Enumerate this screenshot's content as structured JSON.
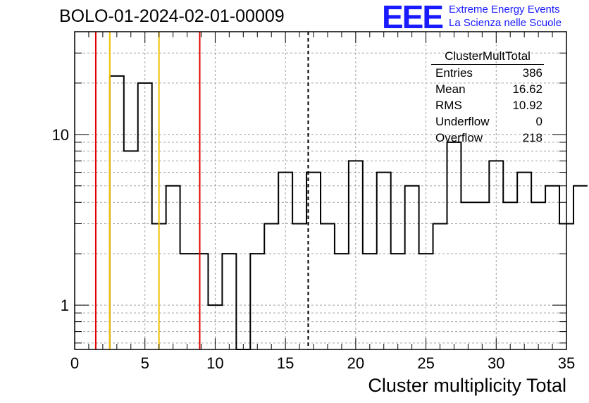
{
  "title": "BOLO-01-2024-02-01-00009",
  "logo": {
    "mark": "EEE",
    "line1": "Extreme Energy Events",
    "line2": "La Scienza nelle Scuole",
    "color": "#1a1aff"
  },
  "stats": {
    "name": "ClusterMultTotal",
    "rows": [
      {
        "label": "Entries",
        "value": "386"
      },
      {
        "label": "Mean",
        "value": "16.62"
      },
      {
        "label": "RMS",
        "value": "10.92"
      },
      {
        "label": "Underflow",
        "value": "0"
      },
      {
        "label": "Overflow",
        "value": "218"
      }
    ]
  },
  "chart_data": {
    "type": "histogram",
    "title": "BOLO-01-2024-02-01-00009",
    "xlabel": "Cluster multiplicity Total",
    "ylabel": "",
    "xlim": [
      0,
      35
    ],
    "ylim": [
      0.55,
      40
    ],
    "yscale": "log",
    "grid": true,
    "x_ticks": [
      "0",
      "5",
      "10",
      "15",
      "20",
      "25",
      "30",
      "35"
    ],
    "y_ticks": [
      "1",
      "10"
    ],
    "bin_edges_start": 2.5,
    "bin_width": 1,
    "values": [
      22,
      8,
      20,
      3,
      5,
      2,
      2,
      1,
      2,
      0,
      2,
      3,
      6,
      3,
      6,
      3,
      2,
      7,
      2,
      6,
      2,
      5,
      2,
      3,
      9,
      4,
      4,
      7,
      4,
      6,
      4,
      5,
      3,
      5
    ],
    "vertical_lines": [
      {
        "x": 1.5,
        "color": "#e00000",
        "style": "solid"
      },
      {
        "x": 2.5,
        "color": "#f0c000",
        "style": "solid"
      },
      {
        "x": 6.0,
        "color": "#f0c000",
        "style": "solid"
      },
      {
        "x": 8.9,
        "color": "#e00000",
        "style": "solid"
      },
      {
        "x": 16.62,
        "color": "#000000",
        "style": "dashed"
      }
    ]
  }
}
